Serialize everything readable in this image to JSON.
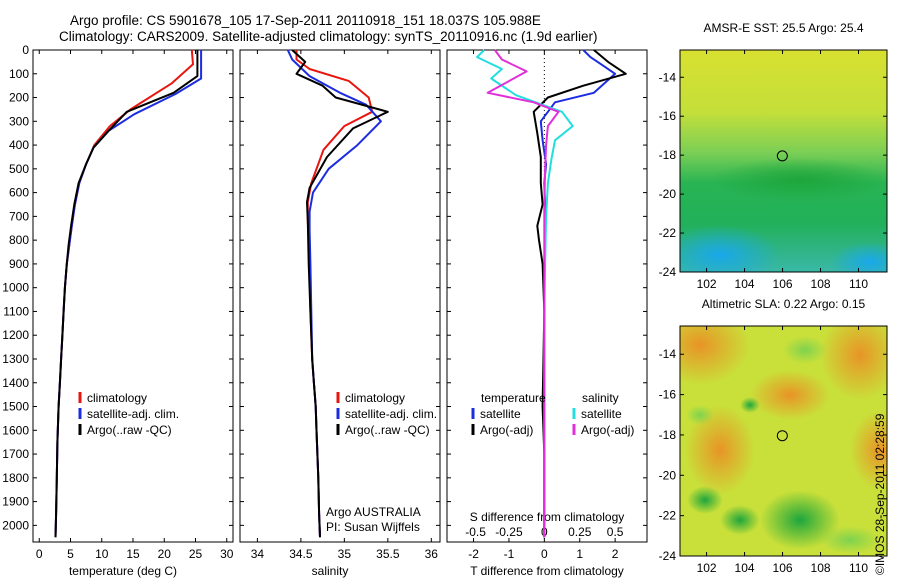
{
  "header": {
    "line1": "Argo profile: CS 5901678_105 17-Sep-2011 20110918_151 18.037S 105.988E",
    "line2": "Climatology: CARS2009. Satellite-adjusted climatology: synTS_20110916.nc (1.9d earlier)"
  },
  "credit": "©IMOS 28-Sep-2011 02:28:59",
  "colors": {
    "climatology": "#e8160f",
    "satellite": "#1c2ce0",
    "argo": "#000000",
    "satellite_s": "#22dede",
    "argo_s": "#e030d8"
  },
  "chart_data": [
    {
      "type": "line",
      "panel": "temperature",
      "xlabel": "temperature (deg C)",
      "ylabel": "",
      "xlim": [
        -1,
        31
      ],
      "ylim": [
        2070,
        0
      ],
      "y_reversed": true,
      "xticks": [
        "0",
        "5",
        "10",
        "15",
        "20",
        "25",
        "30"
      ],
      "yticks": [
        "0",
        "100",
        "200",
        "300",
        "400",
        "500",
        "600",
        "700",
        "800",
        "900",
        "1000",
        "1100",
        "1200",
        "1300",
        "1400",
        "1500",
        "1600",
        "1700",
        "1800",
        "1900",
        "2000"
      ],
      "legend": [
        "climatology",
        "satellite-adj. clim.",
        "Argo(..raw -QC)"
      ],
      "series": [
        {
          "name": "climatology",
          "color": "#e8160f",
          "x": [
            24.4,
            24.6,
            21.2,
            14.6,
            11.3,
            8.8,
            7.5,
            6.4,
            5.7,
            5.2,
            4.8,
            4.4,
            4.1,
            3.9,
            3.7,
            3.5,
            3.3,
            3.1,
            2.9,
            2.8,
            2.7,
            2.6
          ],
          "y": [
            0,
            60,
            140,
            250,
            320,
            400,
            480,
            560,
            650,
            740,
            820,
            900,
            1000,
            1100,
            1200,
            1300,
            1400,
            1500,
            1650,
            1800,
            1950,
            2050
          ]
        },
        {
          "name": "satellite-adj. clim.",
          "color": "#1c2ce0",
          "x": [
            25.9,
            25.9,
            21.8,
            15.2,
            11.1,
            8.7,
            7.5,
            6.4,
            5.7,
            5.2,
            4.8,
            4.4,
            4.1,
            3.9,
            3.7,
            3.5,
            3.3,
            3.1,
            2.9,
            2.8,
            2.7,
            2.6
          ],
          "y": [
            0,
            120,
            185,
            270,
            340,
            410,
            480,
            560,
            650,
            740,
            820,
            900,
            1000,
            1100,
            1200,
            1300,
            1400,
            1500,
            1650,
            1800,
            1950,
            2050
          ]
        },
        {
          "name": "Argo(..raw -QC)",
          "color": "#000000",
          "x": [
            25.3,
            25.3,
            21.5,
            14.0,
            11.1,
            8.7,
            7.5,
            6.3,
            5.6,
            5.1,
            4.7,
            4.4,
            4.1,
            3.9,
            3.7,
            3.5,
            3.3,
            3.1,
            2.9,
            2.8,
            2.7,
            2.6
          ],
          "y": [
            0,
            110,
            180,
            260,
            340,
            410,
            480,
            560,
            650,
            740,
            820,
            900,
            1000,
            1100,
            1200,
            1300,
            1400,
            1500,
            1650,
            1800,
            1950,
            2050
          ]
        }
      ]
    },
    {
      "type": "line",
      "panel": "salinity",
      "xlabel": "salinity",
      "ylabel": "",
      "xlim": [
        33.8,
        36.1
      ],
      "ylim": [
        2070,
        0
      ],
      "y_reversed": true,
      "xticks": [
        "34",
        "34.5",
        "35",
        "35.5",
        "36"
      ],
      "legend": [
        "climatology",
        "satellite-adj. clim.",
        "Argo(..raw -QC)"
      ],
      "annotation": [
        "Argo AUSTRALIA",
        "PI: Susan Wijffels"
      ],
      "series": [
        {
          "name": "climatology",
          "color": "#e8160f",
          "x": [
            34.45,
            34.45,
            34.6,
            35.05,
            35.28,
            35.32,
            35.0,
            34.76,
            34.62,
            34.58,
            34.58,
            34.6,
            34.61,
            34.63,
            34.65,
            34.67,
            34.68,
            34.7,
            34.71,
            34.72
          ],
          "y": [
            0,
            40,
            80,
            130,
            200,
            260,
            320,
            420,
            560,
            640,
            720,
            900,
            1100,
            1300,
            1400,
            1500,
            1600,
            1800,
            1950,
            2050
          ]
        },
        {
          "name": "satellite-adj. clim.",
          "color": "#1c2ce0",
          "x": [
            34.35,
            34.4,
            34.6,
            34.95,
            35.25,
            35.42,
            35.15,
            34.82,
            34.64,
            34.6,
            34.6,
            34.61,
            34.62,
            34.63,
            34.65,
            34.67,
            34.68,
            34.7,
            34.71,
            34.72
          ],
          "y": [
            0,
            40,
            110,
            180,
            230,
            300,
            400,
            500,
            600,
            680,
            760,
            900,
            1100,
            1300,
            1400,
            1500,
            1600,
            1800,
            1950,
            2050
          ]
        },
        {
          "name": "Argo(..raw -QC)",
          "color": "#000000",
          "x": [
            34.4,
            34.55,
            34.45,
            34.75,
            34.9,
            35.5,
            35.1,
            34.8,
            34.6,
            34.57,
            34.58,
            34.59,
            34.61,
            34.63,
            34.65,
            34.67,
            34.68,
            34.7,
            34.71,
            34.72
          ],
          "y": [
            0,
            50,
            100,
            150,
            200,
            260,
            330,
            450,
            580,
            640,
            720,
            900,
            1100,
            1300,
            1400,
            1500,
            1600,
            1800,
            1950,
            2050
          ]
        }
      ]
    },
    {
      "type": "line",
      "panel": "difference",
      "xlabel": "T difference from climatology",
      "x2label": "S difference from climatology",
      "ylabel": "",
      "xlim": [
        -2.75,
        2.9
      ],
      "ylim": [
        2070,
        0
      ],
      "y_reversed": true,
      "xticks": [
        "-2",
        "-1",
        "0",
        "1",
        "2"
      ],
      "x2ticks": [
        "-0.5",
        "-0.25",
        "0",
        "0.25",
        "0.5"
      ],
      "legend_temperature": [
        "temperature",
        "satellite",
        "Argo(-adj)"
      ],
      "legend_salinity": [
        "salinity",
        "satellite",
        "Argo(-adj)"
      ],
      "series": [
        {
          "name": "satellite",
          "color": "#1c2ce0",
          "x": [
            1.1,
            1.3,
            1.7,
            2.0,
            1.4,
            0.3,
            -0.1,
            -0.05,
            0.05,
            0,
            0.03,
            0,
            0,
            0,
            0,
            0,
            0,
            0
          ],
          "y": [
            0,
            30,
            70,
            100,
            180,
            220,
            300,
            380,
            480,
            560,
            700,
            900,
            1100,
            1300,
            1500,
            1700,
            1900,
            2050
          ]
        },
        {
          "name": "Argo(-adj)",
          "color": "#000000",
          "x": [
            1.4,
            1.8,
            2.3,
            1.1,
            0.1,
            -0.3,
            -0.2,
            -0.1,
            -0.1,
            -0.05,
            -0.2,
            -0.15,
            -0.05,
            0,
            -0.05,
            0,
            0,
            0
          ],
          "y": [
            0,
            50,
            100,
            150,
            200,
            260,
            350,
            450,
            560,
            650,
            740,
            800,
            900,
            1100,
            1500,
            1700,
            1900,
            2050
          ]
        },
        {
          "name": "satellite",
          "color": "#22dede",
          "x": [
            -1.7,
            -1.9,
            -1.2,
            -1.5,
            -0.8,
            0.5,
            0.8,
            0.3,
            0.2,
            0.1,
            0.05,
            0.02,
            0,
            0,
            0,
            0,
            0
          ],
          "y": [
            0,
            30,
            80,
            120,
            190,
            260,
            320,
            380,
            460,
            560,
            700,
            900,
            1100,
            1300,
            1500,
            1800,
            2050
          ]
        },
        {
          "name": "Argo(-adj)",
          "color": "#e030d8",
          "x": [
            -1.4,
            -1.2,
            -0.5,
            -1.6,
            -0.3,
            0.4,
            0.1,
            0.05,
            0.02,
            0,
            0,
            0,
            0,
            0,
            0,
            0
          ],
          "y": [
            0,
            40,
            90,
            180,
            220,
            260,
            320,
            400,
            500,
            650,
            800,
            1000,
            1200,
            1500,
            1800,
            2050
          ]
        }
      ]
    },
    {
      "type": "heatmap",
      "panel": "sst",
      "title": "AMSR-E SST: 25.5 Argo: 25.4",
      "xlim": [
        100.6,
        111.5
      ],
      "ylim": [
        -24,
        -12.6
      ],
      "xticks": [
        "102",
        "104",
        "106",
        "108",
        "110"
      ],
      "yticks": [
        "-14",
        "-16",
        "-18",
        "-20",
        "-22",
        "-24"
      ],
      "marker": {
        "lon": 105.988,
        "lat": -18.037
      }
    },
    {
      "type": "heatmap",
      "panel": "sla",
      "title": "Altimetric SLA: 0.22 Argo: 0.15",
      "xlim": [
        100.6,
        111.5
      ],
      "ylim": [
        -24,
        -12.6
      ],
      "xticks": [
        "102",
        "104",
        "106",
        "108",
        "110"
      ],
      "yticks": [
        "-14",
        "-16",
        "-18",
        "-20",
        "-22",
        "-24"
      ],
      "marker": {
        "lon": 105.988,
        "lat": -18.037
      }
    }
  ]
}
